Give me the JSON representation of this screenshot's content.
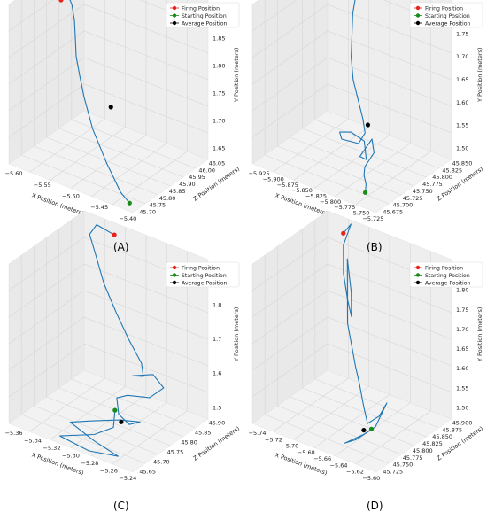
{
  "figure": {
    "panel_labels": [
      "(A)",
      "(B)",
      "(C)",
      "(D)"
    ]
  },
  "colors": {
    "trajectory": "#1f77b4",
    "firing": "#e8211b",
    "starting": "#1a8a1a",
    "average": "#000000",
    "pane_left": "#e9e9e9",
    "pane_right": "#eeeeee",
    "pane_floor": "#f2f2f2",
    "grid": "#d6d6d6"
  },
  "chart_data": [
    {
      "type": "line3d",
      "panel": "(A)",
      "xlabel": "X Position (meters)",
      "ylabel": "Z Position (meters)",
      "zlabel": "Y Position (meters)",
      "legend": [
        "Firing Position",
        "Starting Position",
        "Average Position"
      ],
      "x_ticks": [
        "−5.60",
        "−5.55",
        "−5.50",
        "−5.45",
        "−5.40"
      ],
      "y_ticks": [
        "45.70",
        "45.75",
        "45.80",
        "45.85",
        "45.90",
        "45.95",
        "46.00",
        "46.05"
      ],
      "z_ticks": [
        "1.65",
        "1.70",
        "1.75",
        "1.80",
        "1.85",
        "1.90"
      ],
      "xlim": [
        -5.62,
        -5.39
      ],
      "ylim": [
        45.68,
        46.08
      ],
      "zlim": [
        1.62,
        1.93
      ],
      "grid": true,
      "legend_position": "top-right",
      "firing": [
        -5.6,
        45.9,
        1.89
      ],
      "starting": [
        -5.41,
        45.72,
        1.62
      ],
      "average": [
        -5.49,
        45.85,
        1.74
      ],
      "trajectory": [
        [
          -5.6,
          45.9,
          1.89
        ],
        [
          -5.59,
          45.9,
          1.91
        ],
        [
          -5.58,
          45.9,
          1.89
        ],
        [
          -5.575,
          45.9,
          1.86
        ],
        [
          -5.57,
          45.89,
          1.83
        ],
        [
          -5.565,
          45.88,
          1.8
        ],
        [
          -5.555,
          45.87,
          1.77
        ],
        [
          -5.54,
          45.85,
          1.74
        ],
        [
          -5.525,
          45.83,
          1.72
        ],
        [
          -5.51,
          45.81,
          1.7
        ],
        [
          -5.49,
          45.79,
          1.68
        ],
        [
          -5.47,
          45.77,
          1.66
        ],
        [
          -5.45,
          45.75,
          1.645
        ],
        [
          -5.43,
          45.73,
          1.63
        ],
        [
          -5.41,
          45.72,
          1.62
        ]
      ]
    },
    {
      "type": "line3d",
      "panel": "(B)",
      "xlabel": "X Position (meters)",
      "ylabel": "Z Position (meters)",
      "zlabel": "Y Position (meters)",
      "legend": [
        "Firing Position",
        "Starting Position",
        "Average Position"
      ],
      "x_ticks": [
        "−5.925",
        "−5.900",
        "−5.875",
        "−5.850",
        "−5.825",
        "−5.800",
        "−5.775",
        "−5.750",
        "−5.725"
      ],
      "y_ticks": [
        "45.675",
        "45.700",
        "45.725",
        "45.750",
        "45.775",
        "45.800",
        "45.825",
        "45.850"
      ],
      "z_ticks": [
        "1.50",
        "1.55",
        "1.60",
        "1.65",
        "1.70",
        "1.75",
        "1.80"
      ],
      "xlim": [
        -5.935,
        -5.715
      ],
      "ylim": [
        45.66,
        45.87
      ],
      "zlim": [
        1.47,
        1.82
      ],
      "grid": true,
      "legend_position": "top-right",
      "firing": [
        -5.85,
        45.84,
        1.8
      ],
      "starting": [
        -5.76,
        45.7,
        1.47
      ],
      "average": [
        -5.8,
        45.77,
        1.56
      ],
      "trajectory": [
        [
          -5.85,
          45.84,
          1.8
        ],
        [
          -5.86,
          45.84,
          1.81
        ],
        [
          -5.865,
          45.84,
          1.78
        ],
        [
          -5.865,
          45.83,
          1.74
        ],
        [
          -5.86,
          45.82,
          1.7
        ],
        [
          -5.855,
          45.81,
          1.66
        ],
        [
          -5.845,
          45.8,
          1.62
        ],
        [
          -5.83,
          45.79,
          1.59
        ],
        [
          -5.815,
          45.78,
          1.56
        ],
        [
          -5.805,
          45.77,
          1.54
        ],
        [
          -5.81,
          45.76,
          1.52
        ],
        [
          -5.84,
          45.76,
          1.515
        ],
        [
          -5.85,
          45.77,
          1.52
        ],
        [
          -5.83,
          45.77,
          1.53
        ],
        [
          -5.8,
          45.76,
          1.53
        ],
        [
          -5.79,
          45.75,
          1.5
        ],
        [
          -5.795,
          45.74,
          1.51
        ],
        [
          -5.78,
          45.75,
          1.55
        ],
        [
          -5.77,
          45.74,
          1.53
        ],
        [
          -5.78,
          45.73,
          1.5
        ],
        [
          -5.775,
          45.72,
          1.49
        ],
        [
          -5.765,
          45.71,
          1.48
        ],
        [
          -5.76,
          45.7,
          1.47
        ]
      ]
    },
    {
      "type": "line3d",
      "panel": "(C)",
      "xlabel": "X Position (meters)",
      "ylabel": "Z Position (meters)",
      "zlabel": "Y Position (meters)",
      "legend": [
        "Firing Position",
        "Starting Position",
        "Average Position"
      ],
      "x_ticks": [
        "−5.36",
        "−5.34",
        "−5.32",
        "−5.30",
        "−5.28",
        "−5.26",
        "−5.24"
      ],
      "y_ticks": [
        "45.65",
        "45.70",
        "45.75",
        "45.80",
        "45.85",
        "45.90"
      ],
      "z_ticks": [
        "1.5",
        "1.6",
        "1.7",
        "1.8",
        "1.9"
      ],
      "xlim": [
        -5.37,
        -5.23
      ],
      "ylim": [
        45.63,
        45.92
      ],
      "zlim": [
        1.45,
        1.95
      ],
      "grid": true,
      "legend_position": "top-right",
      "firing": [
        -5.33,
        45.9,
        1.93
      ],
      "starting": [
        -5.3,
        45.8,
        1.47
      ],
      "average": [
        -5.29,
        45.79,
        1.45
      ],
      "trajectory": [
        [
          -5.33,
          45.9,
          1.93
        ],
        [
          -5.35,
          45.9,
          1.94
        ],
        [
          -5.355,
          45.89,
          1.91
        ],
        [
          -5.345,
          45.88,
          1.86
        ],
        [
          -5.33,
          45.86,
          1.8
        ],
        [
          -5.31,
          45.84,
          1.74
        ],
        [
          -5.29,
          45.82,
          1.69
        ],
        [
          -5.27,
          45.8,
          1.65
        ],
        [
          -5.265,
          45.79,
          1.62
        ],
        [
          -5.28,
          45.8,
          1.6
        ],
        [
          -5.26,
          45.81,
          1.62
        ],
        [
          -5.245,
          45.8,
          1.6
        ],
        [
          -5.255,
          45.78,
          1.57
        ],
        [
          -5.28,
          45.78,
          1.55
        ],
        [
          -5.295,
          45.79,
          1.52
        ],
        [
          -5.29,
          45.78,
          1.48
        ],
        [
          -5.275,
          45.77,
          1.47
        ],
        [
          -5.26,
          45.76,
          1.5
        ],
        [
          -5.28,
          45.75,
          1.49
        ],
        [
          -5.31,
          45.74,
          1.46
        ],
        [
          -5.33,
          45.73,
          1.44
        ],
        [
          -5.3,
          45.72,
          1.42
        ],
        [
          -5.27,
          45.71,
          1.41
        ],
        [
          -5.3,
          45.7,
          1.4
        ],
        [
          -5.33,
          45.69,
          1.42
        ],
        [
          -5.3,
          45.72,
          1.44
        ],
        [
          -5.29,
          45.76,
          1.45
        ],
        [
          -5.3,
          45.8,
          1.47
        ]
      ]
    },
    {
      "type": "line3d",
      "panel": "(D)",
      "xlabel": "X Position (meters)",
      "ylabel": "Z Position (meters)",
      "zlabel": "Y Position (meters)",
      "legend": [
        "Firing Position",
        "Starting Position",
        "Average Position"
      ],
      "x_ticks": [
        "−5.74",
        "−5.72",
        "−5.70",
        "−5.68",
        "−5.66",
        "−5.64",
        "−5.62",
        "−5.60"
      ],
      "y_ticks": [
        "45.725",
        "45.750",
        "45.775",
        "45.800",
        "45.825",
        "45.850",
        "45.875",
        "45.900"
      ],
      "z_ticks": [
        "1.50",
        "1.55",
        "1.60",
        "1.65",
        "1.70",
        "1.75",
        "1.80",
        "1.85"
      ],
      "xlim": [
        -5.75,
        -5.59
      ],
      "ylim": [
        45.71,
        45.91
      ],
      "zlim": [
        1.47,
        1.87
      ],
      "grid": true,
      "legend_position": "top-right",
      "firing": [
        -5.72,
        45.89,
        1.85
      ],
      "starting": [
        -5.64,
        45.8,
        1.48
      ],
      "average": [
        -5.645,
        45.79,
        1.48
      ],
      "trajectory": [
        [
          -5.72,
          45.89,
          1.85
        ],
        [
          -5.715,
          45.9,
          1.87
        ],
        [
          -5.72,
          45.89,
          1.82
        ],
        [
          -5.715,
          45.88,
          1.76
        ],
        [
          -5.705,
          45.87,
          1.71
        ],
        [
          -5.695,
          45.86,
          1.68
        ],
        [
          -5.7,
          45.87,
          1.73
        ],
        [
          -5.71,
          45.88,
          1.8
        ],
        [
          -5.7,
          45.86,
          1.66
        ],
        [
          -5.69,
          45.85,
          1.62
        ],
        [
          -5.68,
          45.84,
          1.58
        ],
        [
          -5.67,
          45.83,
          1.55
        ],
        [
          -5.655,
          45.81,
          1.52
        ],
        [
          -5.645,
          45.8,
          1.49
        ],
        [
          -5.63,
          45.8,
          1.52
        ],
        [
          -5.625,
          45.81,
          1.55
        ],
        [
          -5.63,
          45.79,
          1.5
        ],
        [
          -5.645,
          45.77,
          1.47
        ],
        [
          -5.655,
          45.76,
          1.46
        ],
        [
          -5.64,
          45.78,
          1.48
        ],
        [
          -5.64,
          45.8,
          1.48
        ]
      ]
    }
  ]
}
